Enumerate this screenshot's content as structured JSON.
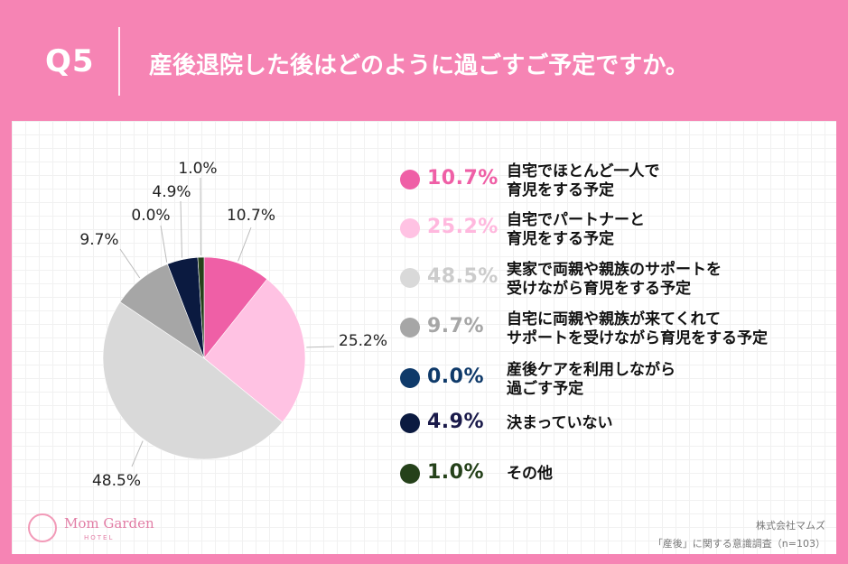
{
  "header": {
    "question_number": "Q5",
    "title": "産後退院した後はどのように過ごすご予定ですか。"
  },
  "colors": {
    "background": "#f684b4",
    "panel": "#ffffff"
  },
  "chart_data": {
    "type": "pie",
    "start_angle_deg": 0,
    "direction": "clockwise",
    "slices": [
      {
        "label": "自宅でほとんど一人で\n育児をする予定",
        "value": 10.7,
        "pct_label": "10.7%",
        "color": "#ef5fa6",
        "pct_text_color": "#ef5fa6"
      },
      {
        "label": "自宅でパートナーと\n育児をする予定",
        "value": 25.2,
        "pct_label": "25.2%",
        "color": "#ffc2e3",
        "pct_text_color": "#ffb8de"
      },
      {
        "label": "実家で両親や親族のサポートを\n受けながら育児をする予定",
        "value": 48.5,
        "pct_label": "48.5%",
        "color": "#d9d9d9",
        "pct_text_color": "#cccccc"
      },
      {
        "label": "自宅に両親や親族が来てくれて\nサポートを受けながら育児をする予定",
        "value": 9.7,
        "pct_label": "9.7%",
        "color": "#a6a6a6",
        "pct_text_color": "#a6a6a6"
      },
      {
        "label": "産後ケアを利用しながら\n過ごす予定",
        "value": 0.0,
        "pct_label": "0.0%",
        "color": "#0f3a6a",
        "pct_text_color": "#0f3a6a"
      },
      {
        "label": "決まっていない",
        "value": 4.9,
        "pct_label": "4.9%",
        "color": "#0b1a40",
        "pct_text_color": "#1a1a4a"
      },
      {
        "label": "その他",
        "value": 1.0,
        "pct_label": "1.0%",
        "color": "#25411a",
        "pct_text_color": "#25411a"
      }
    ]
  },
  "footer": {
    "logo_name": "Mom Garden",
    "logo_sub": "HOTEL",
    "company": "株式会社マムズ",
    "survey": "「産後」に関する意識調査（n=103）"
  }
}
